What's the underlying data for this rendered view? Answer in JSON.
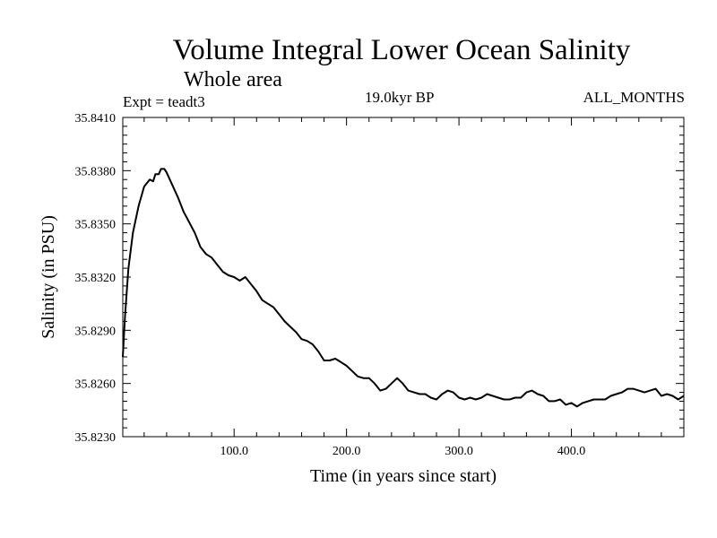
{
  "chart_data": {
    "type": "line",
    "title": "Volume Integral Lower Ocean Salinity",
    "subtitle": "Whole area",
    "annotations": {
      "expt": "Expt = teadt3",
      "period": "19.0kyr BP",
      "months": "ALL_MONTHS"
    },
    "xlabel": "Time (in years since start)",
    "ylabel": "Salinity (in PSU)",
    "xlim": [
      1,
      500
    ],
    "ylim": [
      35.823,
      35.841
    ],
    "x_ticks": [
      {
        "value": 100,
        "label": "100.0"
      },
      {
        "value": 200,
        "label": "200.0"
      },
      {
        "value": 300,
        "label": "300.0"
      },
      {
        "value": 400,
        "label": "400.0"
      }
    ],
    "y_ticks": [
      {
        "value": 35.823,
        "label": "35.8230"
      },
      {
        "value": 35.826,
        "label": "35.8260"
      },
      {
        "value": 35.829,
        "label": "35.8290"
      },
      {
        "value": 35.832,
        "label": "35.8320"
      },
      {
        "value": 35.835,
        "label": "35.8350"
      },
      {
        "value": 35.838,
        "label": "35.8380"
      },
      {
        "value": 35.841,
        "label": "35.8410"
      }
    ],
    "series": [
      {
        "name": "salinity",
        "x": [
          1,
          3,
          6,
          10,
          15,
          20,
          25,
          28,
          30,
          33,
          35,
          38,
          40,
          45,
          50,
          55,
          60,
          65,
          70,
          75,
          80,
          85,
          90,
          95,
          100,
          105,
          110,
          115,
          120,
          125,
          130,
          135,
          140,
          145,
          150,
          155,
          160,
          165,
          170,
          175,
          180,
          185,
          190,
          195,
          200,
          205,
          210,
          215,
          220,
          225,
          230,
          235,
          240,
          245,
          250,
          255,
          260,
          265,
          270,
          275,
          280,
          285,
          290,
          295,
          300,
          305,
          310,
          315,
          320,
          325,
          330,
          335,
          340,
          345,
          350,
          355,
          360,
          365,
          370,
          375,
          380,
          385,
          390,
          395,
          400,
          405,
          410,
          415,
          420,
          425,
          430,
          435,
          440,
          445,
          450,
          455,
          460,
          465,
          470,
          475,
          480,
          485,
          490,
          495,
          500
        ],
        "y": [
          35.8275,
          35.8298,
          35.8325,
          35.8345,
          35.836,
          35.8371,
          35.8375,
          35.8374,
          35.8378,
          35.8378,
          35.8381,
          35.8381,
          35.8379,
          35.8372,
          35.8365,
          35.8357,
          35.8351,
          35.8345,
          35.8337,
          35.8333,
          35.8331,
          35.8327,
          35.8323,
          35.8321,
          35.832,
          35.8318,
          35.832,
          35.8316,
          35.8312,
          35.8307,
          35.8305,
          35.8303,
          35.8299,
          35.8295,
          35.8292,
          35.8289,
          35.8285,
          35.8284,
          35.8282,
          35.8278,
          35.8273,
          35.8273,
          35.8274,
          35.8272,
          35.827,
          35.8267,
          35.8264,
          35.8263,
          35.8263,
          35.826,
          35.8256,
          35.8257,
          35.826,
          35.8263,
          35.826,
          35.8256,
          35.8255,
          35.8254,
          35.8254,
          35.8252,
          35.8251,
          35.8254,
          35.8256,
          35.8255,
          35.8252,
          35.8251,
          35.8252,
          35.8251,
          35.8252,
          35.8254,
          35.8253,
          35.8252,
          35.8251,
          35.8251,
          35.8252,
          35.8252,
          35.8255,
          35.8256,
          35.8254,
          35.8253,
          35.825,
          35.825,
          35.8251,
          35.8248,
          35.8249,
          35.8247,
          35.8249,
          35.825,
          35.8251,
          35.8251,
          35.8251,
          35.8253,
          35.8254,
          35.8255,
          35.8257,
          35.8257,
          35.8256,
          35.8255,
          35.8256,
          35.8257,
          35.8253,
          35.8254,
          35.8253,
          35.8251,
          35.8253
        ]
      }
    ]
  }
}
